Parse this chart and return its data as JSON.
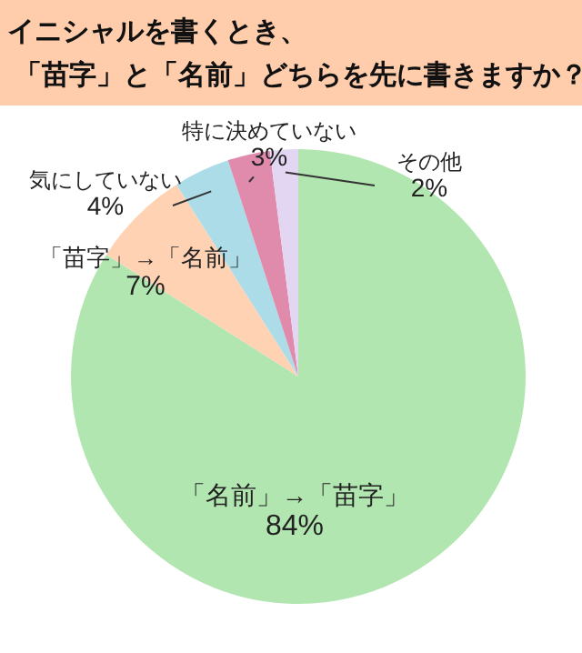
{
  "chart_data": {
    "type": "pie",
    "title": "イニシャルを書くとき、「苗字」と「名前」どちらを先に書きますか？",
    "categories": [
      "「名前」→「苗字」",
      "「苗字」→「名前」",
      "気にしていない",
      "特に決めていない",
      "その他"
    ],
    "values": [
      84,
      7,
      4,
      3,
      2
    ],
    "colors": [
      "#b2e6b0",
      "#ffd2b4",
      "#acdce8",
      "#e08aac",
      "#e2d6f2"
    ],
    "value_labels": [
      "84%",
      "7%",
      "4%",
      "3%",
      "2%"
    ]
  }
}
